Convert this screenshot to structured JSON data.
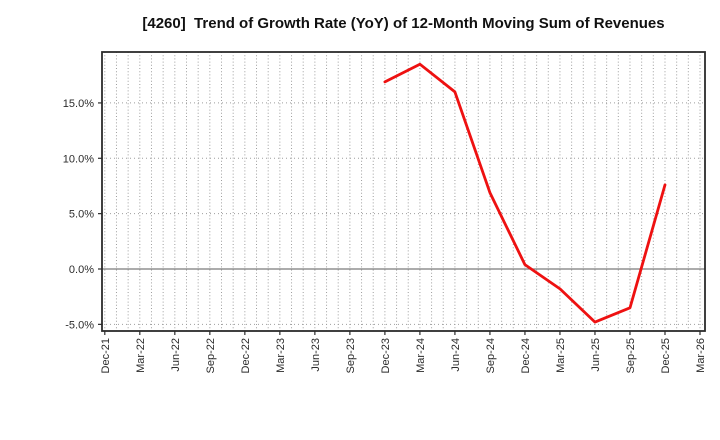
{
  "title": "[4260]  Trend of Growth Rate (YoY) of 12-Month Moving Sum of Revenues",
  "colors": {
    "background": "#ffffff",
    "line": "#ee1111",
    "frame": "#2b2b2b",
    "grid": "#9e9e9e",
    "zero_line": "#7a7a7a",
    "text": "#2b2b2b",
    "title_text": "#111111"
  },
  "chart_data": {
    "type": "line",
    "title": "[4260]  Trend of Growth Rate (YoY) of 12-Month Moving Sum of Revenues",
    "legend_position": "none",
    "x_tick_labels": [
      "Dec-21",
      "Mar-22",
      "Jun-22",
      "Sep-22",
      "Dec-22",
      "Mar-23",
      "Jun-23",
      "Sep-23",
      "Dec-23",
      "Mar-24",
      "Jun-24",
      "Sep-24",
      "Dec-24",
      "Mar-25",
      "Jun-25",
      "Sep-25",
      "Dec-25",
      "Mar-26"
    ],
    "months_per_tick": 3,
    "total_month_intervals": 51,
    "y_ticks": [
      {
        "value": 15,
        "label": "15.0%"
      },
      {
        "value": 10,
        "label": "10.0%"
      },
      {
        "value": 5,
        "label": "5.0%"
      },
      {
        "value": 0,
        "label": "0.0%"
      },
      {
        "value": -5,
        "label": "-5.0%"
      }
    ],
    "ylim": [
      -5.6,
      19.6
    ],
    "grid": {
      "vertical": "monthly dotted",
      "horizontal": "every 5% dotted",
      "zero_line": "solid"
    },
    "series": [
      {
        "name": "Growth Rate (YoY)",
        "color": "#ee1111",
        "values": [
          {
            "x": "Dec-23",
            "y": 16.9
          },
          {
            "x": "Mar-24",
            "y": 18.5
          },
          {
            "x": "Jun-24",
            "y": 16.0
          },
          {
            "x": "Sep-24",
            "y": 6.9
          },
          {
            "x": "Dec-24",
            "y": 0.4
          },
          {
            "x": "Mar-25",
            "y": -1.8
          },
          {
            "x": "Jun-25",
            "y": -4.8
          },
          {
            "x": "Sep-25",
            "y": -3.5
          },
          {
            "x": "Dec-25",
            "y": 7.6
          }
        ]
      }
    ]
  }
}
